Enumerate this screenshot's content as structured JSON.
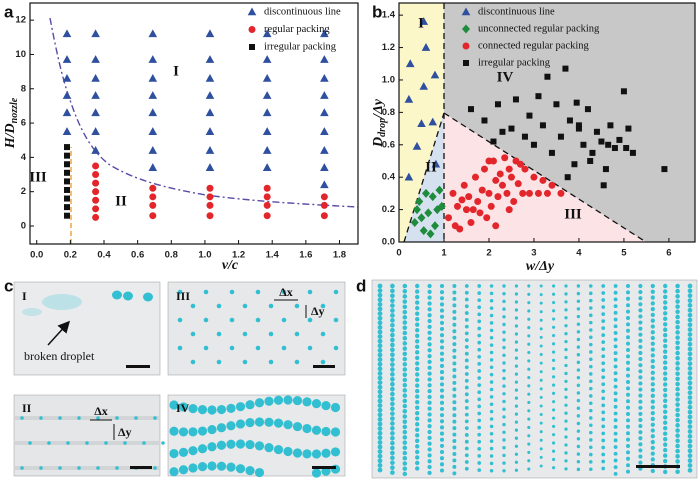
{
  "chart_data": [
    {
      "type": "scatter",
      "panel": "a",
      "xlabel": "v/c",
      "ylabel": {
        "text": "H/D",
        "sub": "nozzle"
      },
      "xlim": [
        -0.04,
        1.91
      ],
      "ylim": [
        -1.05,
        13
      ],
      "xticks": [
        {
          "value": 0,
          "label": "0.0"
        },
        0.2,
        0.4,
        0.6,
        0.8,
        {
          "value": 1,
          "label": "1.0"
        },
        1.2,
        1.4,
        1.6,
        1.8
      ],
      "yticks": [
        0,
        2,
        4,
        6,
        8,
        10,
        12
      ],
      "legend": "upper right",
      "annotations": [
        "I",
        "II",
        "III"
      ],
      "series": [
        {
          "name": "discontinuous line",
          "color": "#2f4f9f",
          "marker": "triangle",
          "x": [
            0.18,
            0.18,
            0.18,
            0.18,
            0.18,
            0.18,
            0.35,
            0.35,
            0.35,
            0.35,
            0.35,
            0.35,
            0.35,
            0.69,
            0.69,
            0.69,
            0.69,
            0.69,
            0.69,
            0.69,
            0.69,
            1.03,
            1.03,
            1.03,
            1.03,
            1.03,
            1.03,
            1.03,
            1.03,
            1.37,
            1.37,
            1.37,
            1.37,
            1.37,
            1.37,
            1.37,
            1.37,
            1.71,
            1.71,
            1.71,
            1.71,
            1.71,
            1.71,
            1.71,
            1.71,
            1.71
          ],
          "values": [
            5.5,
            6.6,
            7.6,
            8.6,
            9.7,
            11.2,
            4.4,
            5.5,
            6.6,
            7.6,
            8.6,
            9.7,
            11.2,
            3.4,
            4.4,
            5.5,
            6.6,
            7.6,
            8.6,
            9.7,
            11.2,
            3.4,
            4.4,
            5.5,
            6.6,
            7.6,
            8.6,
            9.7,
            11.2,
            3.4,
            4.4,
            5.5,
            6.6,
            7.6,
            8.6,
            9.7,
            11.2,
            2.4,
            3.4,
            4.4,
            5.5,
            6.6,
            7.6,
            8.6,
            9.7,
            11.2
          ]
        },
        {
          "name": "regular packing",
          "color": "#e3262b",
          "marker": "circle",
          "x": [
            0.35,
            0.35,
            0.35,
            0.35,
            0.35,
            0.35,
            0.35,
            0.69,
            0.69,
            0.69,
            0.69,
            1.03,
            1.03,
            1.03,
            1.03,
            1.37,
            1.37,
            1.37,
            1.37,
            1.71,
            1.71,
            1.71
          ],
          "values": [
            0.5,
            1,
            1.5,
            2,
            2.5,
            3,
            3.5,
            0.6,
            1.2,
            1.7,
            2.2,
            0.6,
            1.2,
            1.7,
            2.2,
            0.6,
            1.2,
            1.7,
            2.2,
            0.6,
            1.2,
            1.7
          ]
        },
        {
          "name": "irregular packing",
          "color": "#111111",
          "marker": "square",
          "x": [
            0.18,
            0.18,
            0.18,
            0.18,
            0.18,
            0.18,
            0.18,
            0.18,
            0.18
          ],
          "values": [
            0.6,
            1.1,
            1.6,
            2.1,
            2.6,
            3.1,
            3.6,
            4.1,
            4.6
          ]
        }
      ]
    },
    {
      "type": "scatter",
      "panel": "b",
      "xlabel": "w/Δy",
      "ylabel": {
        "text": "D",
        "sub": "drop",
        "rest": "/Δy"
      },
      "xlim": [
        0,
        6.58
      ],
      "ylim": [
        0,
        1.475
      ],
      "xticks": [
        0,
        1,
        2,
        3,
        4,
        5,
        6
      ],
      "yticks": [
        {
          "value": 0,
          "label": "0.0"
        },
        0.2,
        0.4,
        0.6,
        0.8,
        {
          "value": 1,
          "label": "1.0"
        },
        1.2,
        1.4
      ],
      "legend": "upper right",
      "annotations": [
        "I",
        "II",
        "III",
        "IV"
      ],
      "series": [
        {
          "name": "discontinuous line",
          "color": "#2f4f9f",
          "marker": "triangle",
          "x": [
            0.55,
            0.6,
            0.25,
            0.8,
            0.55,
            0.22,
            0.5,
            0.75,
            0.4,
            0.22,
            0.82
          ],
          "values": [
            1.36,
            1.2,
            1.1,
            1.03,
            0.96,
            0.88,
            0.73,
            0.74,
            0.59,
            0.4,
            0.48
          ]
        },
        {
          "name": "unconnected regular packing",
          "color": "#1e8c3c",
          "marker": "diamond",
          "x": [
            0.45,
            0.6,
            0.75,
            0.85,
            0.5,
            0.65,
            0.35,
            0.8,
            0.95,
            0.55,
            0.7,
            0.9,
            0.4
          ],
          "values": [
            0.25,
            0.3,
            0.28,
            0.2,
            0.15,
            0.18,
            0.12,
            0.1,
            0.22,
            0.07,
            0.05,
            0.32,
            0.2
          ]
        },
        {
          "name": "connected regular packing",
          "color": "#e3262b",
          "marker": "circle",
          "x": [
            1.1,
            1.2,
            1.3,
            1.35,
            1.45,
            1.5,
            1.55,
            1.6,
            1.7,
            1.75,
            1.8,
            1.85,
            1.9,
            2.0,
            2.05,
            2.1,
            2.15,
            2.2,
            2.25,
            2.3,
            2.35,
            2.4,
            2.45,
            2.5,
            2.55,
            2.6,
            2.65,
            2.7,
            2.8,
            2.9,
            3.0,
            3.1,
            3.2,
            3.4,
            3.6,
            1.25,
            1.65,
            1.95,
            2.15,
            2.45,
            2.75,
            3.3,
            1.4,
            2.0
          ],
          "values": [
            0.15,
            0.3,
            0.22,
            0.08,
            0.35,
            0.2,
            0.28,
            0.12,
            0.4,
            0.25,
            0.18,
            0.32,
            0.45,
            0.3,
            0.22,
            0.5,
            0.38,
            0.28,
            0.42,
            0.35,
            0.52,
            0.3,
            0.45,
            0.4,
            0.25,
            0.5,
            0.36,
            0.48,
            0.45,
            0.3,
            0.4,
            0.3,
            0.38,
            0.35,
            0.3,
            0.1,
            0.2,
            0.15,
            0.1,
            0.2,
            0.3,
            0.3,
            0.26,
            0.5
          ]
        },
        {
          "name": "irregular packing",
          "color": "#111111",
          "marker": "square",
          "x": [
            1.6,
            1.9,
            2.1,
            2.3,
            2.5,
            2.6,
            2.8,
            2.9,
            3.0,
            3.1,
            3.2,
            3.3,
            3.4,
            3.5,
            3.6,
            3.7,
            3.8,
            3.9,
            4.0,
            4.1,
            4.2,
            4.3,
            4.4,
            4.5,
            4.6,
            4.7,
            4.8,
            4.9,
            5.0,
            5.1,
            5.2,
            4.55,
            5.9,
            3.75,
            4.25,
            4.65,
            3.95,
            2.2,
            4.0,
            5.05
          ],
          "values": [
            0.82,
            0.75,
            0.62,
            0.68,
            0.7,
            0.88,
            0.65,
            0.78,
            0.6,
            0.9,
            0.72,
            1.02,
            0.55,
            0.85,
            0.65,
            1.07,
            0.75,
            0.48,
            0.7,
            0.6,
            0.82,
            0.55,
            0.68,
            0.62,
            0.45,
            0.72,
            0.58,
            0.63,
            0.93,
            0.7,
            0.55,
            0.35,
            0.45,
            0.4,
            0.5,
            0.6,
            0.86,
            0.85,
            0.72,
            0.58
          ]
        }
      ]
    }
  ],
  "photos": {
    "c": {
      "panel": "c",
      "insets": [
        {
          "label": "I",
          "note": "broken droplet"
        },
        {
          "label": "III",
          "dx": "Δx",
          "dy": "Δy"
        },
        {
          "label": "II",
          "dx": "Δx",
          "dy": "Δy"
        },
        {
          "label": "IV"
        }
      ]
    },
    "d": {
      "panel": "d"
    }
  }
}
